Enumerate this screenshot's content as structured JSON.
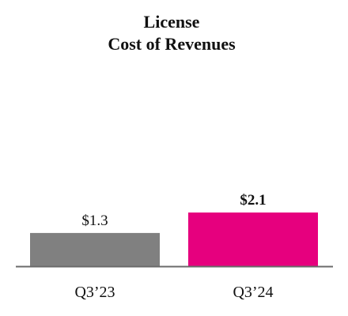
{
  "chart_data": {
    "type": "bar",
    "title_lines": [
      "License",
      "Cost of Revenues"
    ],
    "categories": [
      "Q3’23",
      "Q3’24"
    ],
    "values": [
      1.3,
      2.1
    ],
    "value_labels": [
      "$1.3",
      "$2.1"
    ],
    "value_label_bold": [
      false,
      true
    ],
    "colors": [
      "#808080",
      "#e6007e"
    ],
    "axis_color": "#6b6b6b",
    "ylim": [
      0,
      2.1
    ],
    "grid": false,
    "legend": "none"
  }
}
